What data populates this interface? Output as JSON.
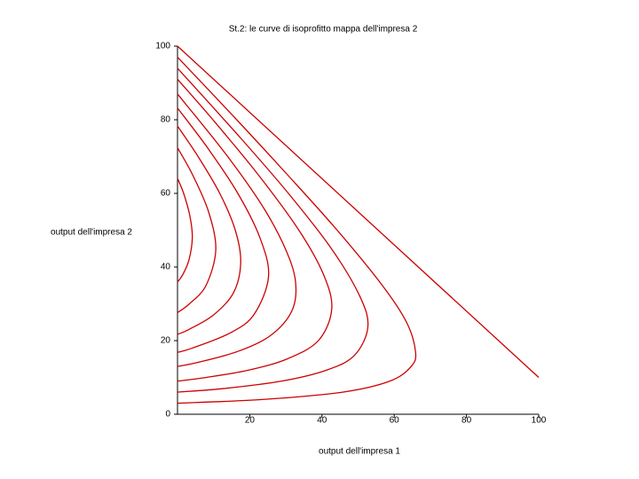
{
  "chart_data": {
    "type": "line",
    "title": "St.2: le curve di isoprofitto mappa dell'impresa 2",
    "x_label": "output dell'impresa 1",
    "y_label": "output dell'impresa 2",
    "xlim": [
      0,
      100
    ],
    "ylim": [
      0,
      100
    ],
    "xticks": [
      20,
      40,
      60,
      80,
      100
    ],
    "yticks": [
      0,
      20,
      40,
      60,
      80,
      100
    ],
    "series": [
      {
        "color": "#cc0000",
        "x": [
          0,
          100
        ],
        "y": [
          100,
          10
        ]
      },
      {
        "color": "#cc0000",
        "x": [
          0,
          23.5,
          45.7,
          58.8,
          64.7,
          65.9,
          63.4,
          56.7,
          44.2,
          30.5,
          16.4,
          0
        ],
        "y": [
          3,
          4,
          6,
          9,
          13,
          17,
          25,
          35,
          50,
          65,
          80,
          97
        ]
      },
      {
        "color": "#cc0000",
        "x": [
          0,
          13,
          28.8,
          41.3,
          49,
          52.7,
          50.5,
          42.6,
          30.7,
          17.5,
          0
        ],
        "y": [
          6,
          7,
          9,
          12,
          16,
          23.7,
          32,
          45,
          60,
          75,
          94
        ]
      },
      {
        "color": "#cc0000",
        "x": [
          0,
          8,
          19.7,
          30.3,
          39,
          42.7,
          40.4,
          33.6,
          22.4,
          9.8,
          0
        ],
        "y": [
          9,
          10,
          12,
          15,
          20,
          28.6,
          38,
          50,
          65,
          80,
          91
        ]
      },
      {
        "color": "#cc0000",
        "x": [
          0,
          5.3,
          16.5,
          25.2,
          31.1,
          32.8,
          31.1,
          24.5,
          13.9,
          0
        ],
        "y": [
          13,
          14,
          17,
          21,
          27,
          33.6,
          42,
          55,
          70,
          87
        ]
      },
      {
        "color": "#cc0000",
        "x": [
          0,
          4.2,
          14.4,
          21.1,
          25.2,
          22.8,
          16.7,
          8.6,
          0
        ],
        "y": [
          16.8,
          18,
          22,
          27,
          37.4,
          48,
          60,
          72,
          83.2
        ]
      },
      {
        "color": "#cc0000",
        "x": [
          0,
          3.1,
          10,
          15.5,
          17.5,
          16,
          11.7,
          5.7,
          0
        ],
        "y": [
          21.7,
          23,
          27,
          33,
          41.2,
          50,
          60,
          70,
          78.3
        ]
      },
      {
        "color": "#cc0000",
        "x": [
          0,
          3.3,
          7.9,
          10.6,
          8.6,
          4.2,
          0
        ],
        "y": [
          27.6,
          30,
          35,
          44.7,
          55,
          65,
          72.4
        ]
      },
      {
        "color": "#cc0000",
        "x": [
          0,
          1.5,
          3.2,
          4.1,
          3.4,
          1.7,
          0
        ],
        "y": [
          35.9,
          38,
          42,
          48,
          54,
          60,
          64.1
        ]
      }
    ]
  }
}
